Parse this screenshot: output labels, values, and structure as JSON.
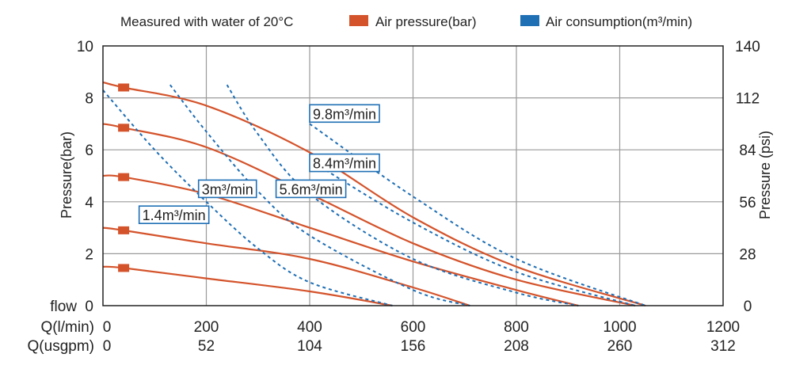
{
  "chart_data": {
    "type": "line",
    "note": "Measured with water of 20°C",
    "legend": [
      {
        "label": "Air pressure(bar)",
        "color": "#d4532b"
      },
      {
        "label": "Air consumption(m³/min)",
        "color": "#1f6fb5"
      }
    ],
    "x_label_rows": [
      {
        "label": "Q(l/min)",
        "ticks": [
          "0",
          "200",
          "400",
          "600",
          "800",
          "1000",
          "1200"
        ]
      },
      {
        "label": "Q(usgpm)",
        "ticks": [
          "0",
          "52",
          "104",
          "156",
          "208",
          "260",
          "312"
        ]
      }
    ],
    "ylabel_left": "Pressure(bar)",
    "ylabel_right": "Pressure (psi)",
    "y_corner_label": "flow",
    "yticks_left": [
      "0",
      "2",
      "4",
      "6",
      "8",
      "10"
    ],
    "yticks_right": [
      "0",
      "28",
      "56",
      "84",
      "112",
      "140"
    ],
    "xlim": [
      0,
      1200
    ],
    "ylim": [
      0,
      10
    ],
    "grid": true,
    "pressure_series": [
      {
        "name": "",
        "points": [
          [
            0,
            8.6
          ],
          [
            40,
            8.4
          ],
          [
            200,
            7.7
          ],
          [
            400,
            5.9
          ],
          [
            600,
            3.4
          ],
          [
            800,
            1.5
          ],
          [
            1050,
            0
          ]
        ]
      },
      {
        "name": "",
        "points": [
          [
            0,
            7.0
          ],
          [
            40,
            6.85
          ],
          [
            200,
            6.1
          ],
          [
            400,
            4.3
          ],
          [
            600,
            2.4
          ],
          [
            800,
            1.0
          ],
          [
            1030,
            0
          ]
        ]
      },
      {
        "name": "",
        "points": [
          [
            0,
            5.0
          ],
          [
            40,
            4.95
          ],
          [
            200,
            4.3
          ],
          [
            400,
            3.0
          ],
          [
            600,
            1.7
          ],
          [
            800,
            0.6
          ],
          [
            920,
            0
          ]
        ]
      },
      {
        "name": "",
        "points": [
          [
            0,
            3.0
          ],
          [
            40,
            2.9
          ],
          [
            200,
            2.4
          ],
          [
            400,
            1.8
          ],
          [
            600,
            0.7
          ],
          [
            710,
            0
          ]
        ]
      },
      {
        "name": "",
        "points": [
          [
            0,
            1.5
          ],
          [
            40,
            1.45
          ],
          [
            200,
            1.05
          ],
          [
            400,
            0.55
          ],
          [
            560,
            0
          ]
        ]
      }
    ],
    "pressure_markers": [
      [
        40,
        8.4
      ],
      [
        40,
        6.85
      ],
      [
        40,
        4.95
      ],
      [
        40,
        2.9
      ],
      [
        40,
        1.45
      ]
    ],
    "consumption_series": [
      {
        "label": "1.4m³/min",
        "points": [
          [
            0,
            8.3
          ],
          [
            100,
            6.0
          ],
          [
            200,
            4.0
          ],
          [
            300,
            2.2
          ],
          [
            400,
            0.9
          ],
          [
            560,
            0
          ]
        ]
      },
      {
        "label": "3m³/min",
        "points": [
          [
            130,
            8.5
          ],
          [
            200,
            6.7
          ],
          [
            300,
            4.4
          ],
          [
            400,
            2.7
          ],
          [
            600,
            0.6
          ],
          [
            710,
            0
          ]
        ]
      },
      {
        "label": "5.6m³/min",
        "points": [
          [
            240,
            8.5
          ],
          [
            300,
            6.6
          ],
          [
            400,
            4.3
          ],
          [
            600,
            1.8
          ],
          [
            800,
            0.5
          ],
          [
            920,
            0
          ]
        ]
      },
      {
        "label": "8.4m³/min",
        "points": [
          [
            400,
            5.6
          ],
          [
            600,
            3.2
          ],
          [
            800,
            1.3
          ],
          [
            1030,
            0
          ]
        ]
      },
      {
        "label": "9.8m³/min",
        "points": [
          [
            400,
            7.0
          ],
          [
            600,
            4.2
          ],
          [
            800,
            1.8
          ],
          [
            1050,
            0
          ]
        ]
      }
    ],
    "annotations": [
      {
        "text": "9.8m³/min",
        "x": 400,
        "y": 7.4
      },
      {
        "text": "8.4m³/min",
        "x": 400,
        "y": 5.5
      },
      {
        "text": "3m³/min",
        "x": 185,
        "y": 4.5
      },
      {
        "text": "5.6m³/min",
        "x": 335,
        "y": 4.5
      },
      {
        "text": "1.4m³/min",
        "x": 70,
        "y": 3.5
      }
    ]
  }
}
